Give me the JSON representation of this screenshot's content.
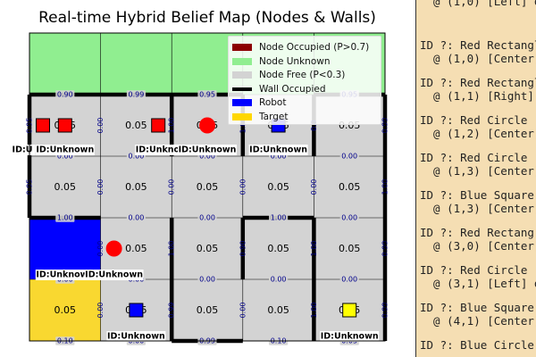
{
  "chart_data": {
    "type": "heatmap",
    "title": "Real-time Hybrid Belief Map (Nodes & Walls)",
    "grid": {
      "cols": 5,
      "rows": 5
    },
    "cells": [
      [
        {
          "state": "unknown"
        },
        {
          "state": "unknown"
        },
        {
          "state": "unknown"
        },
        {
          "state": "unknown"
        },
        {
          "state": "unknown"
        }
      ],
      [
        {
          "state": "free",
          "p": "0.05"
        },
        {
          "state": "free",
          "p": "0.05"
        },
        {
          "state": "free",
          "p": "0.05"
        },
        {
          "state": "free",
          "p": "0.05"
        },
        {
          "state": "free",
          "p": "0.05"
        }
      ],
      [
        {
          "state": "free",
          "p": "0.05"
        },
        {
          "state": "free",
          "p": "0.05"
        },
        {
          "state": "free",
          "p": "0.05"
        },
        {
          "state": "free",
          "p": "0.05"
        },
        {
          "state": "free",
          "p": "0.05"
        }
      ],
      [
        {
          "state": "robot",
          "p": ""
        },
        {
          "state": "free",
          "p": "0.05"
        },
        {
          "state": "free",
          "p": "0.05"
        },
        {
          "state": "free",
          "p": "0.05"
        },
        {
          "state": "free",
          "p": "0.05"
        }
      ],
      [
        {
          "state": "target",
          "p": "0.05"
        },
        {
          "state": "free",
          "p": "0.05"
        },
        {
          "state": "free",
          "p": "0.05"
        },
        {
          "state": "free",
          "p": "0.05"
        },
        {
          "state": "free",
          "p": "0.05"
        }
      ]
    ],
    "h_walls": [
      {
        "line": 1,
        "col": 0,
        "p": "0.90"
      },
      {
        "line": 1,
        "col": 1,
        "p": "0.99"
      },
      {
        "line": 1,
        "col": 2,
        "p": "0.95"
      },
      {
        "line": 1,
        "col": 4,
        "p": "0.95"
      },
      {
        "line": 2,
        "col": 0,
        "p": "0.00"
      },
      {
        "line": 2,
        "col": 1,
        "p": "0.00"
      },
      {
        "line": 2,
        "col": 2,
        "p": "0.00"
      },
      {
        "line": 2,
        "col": 3,
        "p": "0.00"
      },
      {
        "line": 2,
        "col": 4,
        "p": "0.00"
      },
      {
        "line": 3,
        "col": 0,
        "p": "1.00"
      },
      {
        "line": 3,
        "col": 1,
        "p": "0.00"
      },
      {
        "line": 3,
        "col": 2,
        "p": "0.00"
      },
      {
        "line": 3,
        "col": 3,
        "p": "1.00"
      },
      {
        "line": 3,
        "col": 4,
        "p": "0.00"
      },
      {
        "line": 4,
        "col": 0,
        "p": "0.00"
      },
      {
        "line": 4,
        "col": 1,
        "p": "0.00"
      },
      {
        "line": 4,
        "col": 2,
        "p": "0.00"
      },
      {
        "line": 4,
        "col": 3,
        "p": "0.00"
      },
      {
        "line": 4,
        "col": 4,
        "p": "0.00"
      },
      {
        "line": 5,
        "col": 0,
        "p": "0.10"
      },
      {
        "line": 5,
        "col": 1,
        "p": "0.00"
      },
      {
        "line": 5,
        "col": 2,
        "p": "0.99"
      },
      {
        "line": 5,
        "col": 3,
        "p": "0.10"
      },
      {
        "line": 5,
        "col": 4,
        "p": "0.05"
      }
    ],
    "v_walls": [
      {
        "row": 1,
        "line": 0,
        "p": "0.95"
      },
      {
        "row": 1,
        "line": 1,
        "p": "0.00"
      },
      {
        "row": 1,
        "line": 2,
        "p": "1.00"
      },
      {
        "row": 1,
        "line": 3,
        "p": "1.00"
      },
      {
        "row": 1,
        "line": 4,
        "p": "0.9"
      },
      {
        "row": 1,
        "line": 5,
        "p": "0.99"
      },
      {
        "row": 2,
        "line": 0,
        "p": "0.95"
      },
      {
        "row": 2,
        "line": 1,
        "p": "0.00"
      },
      {
        "row": 2,
        "line": 2,
        "p": "0.00"
      },
      {
        "row": 2,
        "line": 3,
        "p": "0.00"
      },
      {
        "row": 2,
        "line": 4,
        "p": "0.00"
      },
      {
        "row": 2,
        "line": 5,
        "p": "1.00"
      },
      {
        "row": 3,
        "line": 1,
        "p": "0.00"
      },
      {
        "row": 3,
        "line": 2,
        "p": "1.00"
      },
      {
        "row": 3,
        "line": 3,
        "p": "0.90"
      },
      {
        "row": 3,
        "line": 4,
        "p": "1.00"
      },
      {
        "row": 3,
        "line": 5,
        "p": "0.99"
      },
      {
        "row": 4,
        "line": 1,
        "p": "0.00"
      },
      {
        "row": 4,
        "line": 2,
        "p": "0.99"
      },
      {
        "row": 4,
        "line": 3,
        "p": "0.00"
      },
      {
        "row": 4,
        "line": 4,
        "p": "1.00"
      },
      {
        "row": 4,
        "line": 5,
        "p": "0.99"
      }
    ],
    "markers": [
      {
        "shape": "rect",
        "color": "#ff0000",
        "row": 1,
        "col": 0,
        "pos": "left"
      },
      {
        "shape": "rect",
        "color": "#ff0000",
        "row": 1,
        "col": 0,
        "pos": "center"
      },
      {
        "shape": "rect",
        "color": "#ff0000",
        "row": 1,
        "col": 1,
        "pos": "right"
      },
      {
        "shape": "circle",
        "color": "#ff0000",
        "row": 1,
        "col": 2,
        "pos": "center"
      },
      {
        "shape": "square",
        "color": "#0000ff",
        "row": 1,
        "col": 3,
        "pos": "center"
      },
      {
        "shape": "circle",
        "color": "#ff0000",
        "row": 3,
        "col": 1,
        "pos": "left"
      },
      {
        "shape": "square",
        "color": "#0000ff",
        "row": 4,
        "col": 1,
        "pos": "center"
      },
      {
        "shape": "rect",
        "color": "#ffff00",
        "row": 4,
        "col": 4,
        "pos": "center"
      }
    ],
    "id_labels": [
      {
        "text": "ID:U",
        "row": 1,
        "col": 0,
        "pos": "edge"
      },
      {
        "text": "ID:Unknown",
        "row": 1,
        "col": 0,
        "pos": "center"
      },
      {
        "text": "ID:Unknown",
        "row": 1,
        "col": 1,
        "pos": "right"
      },
      {
        "text": "ID:Unknown",
        "row": 1,
        "col": 2,
        "pos": "center"
      },
      {
        "text": "ID:Unknown",
        "row": 1,
        "col": 3,
        "pos": "center"
      },
      {
        "text": "ID:Unknown",
        "row": 3,
        "col": 0,
        "pos": "center"
      },
      {
        "text": "ID:Unknown",
        "row": 3,
        "col": 1,
        "pos": "left"
      },
      {
        "text": "ID:Unknown",
        "row": 4,
        "col": 1,
        "pos": "center"
      },
      {
        "text": "ID:Unknown",
        "row": 4,
        "col": 4,
        "pos": "center"
      }
    ],
    "legend": [
      {
        "label": "Node Occupied (P>0.7)",
        "color": "#8b0000",
        "kind": "patch"
      },
      {
        "label": "Node Unknown",
        "color": "#90ee90",
        "kind": "patch"
      },
      {
        "label": "Node Free (P<0.3)",
        "color": "#d3d3d3",
        "kind": "patch"
      },
      {
        "label": "Wall Occupied",
        "color": "#000000",
        "kind": "line"
      },
      {
        "label": "Robot",
        "color": "#0000ff",
        "kind": "patch"
      },
      {
        "label": "Target",
        "color": "#ffd700",
        "kind": "patch"
      }
    ],
    "legend_placement": "top-right",
    "colors": {
      "unknown": "#90ee90",
      "free": "#d3d3d3",
      "robot": "#0000ff",
      "target": "#f9d830",
      "wall_label": "#00008b",
      "wall": "#000000"
    }
  },
  "sidebar": {
    "lines": [
      "  @ (1,0) [Left] o",
      "",
      "ID ?: Red Rectangl",
      "  @ (1,0) [Center]",
      "ID ?: Red Rectangl",
      "  @ (1,1) [Right] ",
      "ID ?: Red Circle  ",
      "  @ (1,2) [Center]",
      "ID ?: Red Circle  ",
      "  @ (1,3) [Center]",
      "ID ?: Blue Square ",
      "  @ (1,3) [Center]",
      "ID ?: Red Rectang",
      "  @ (3,0) [Center]",
      "ID ?: Red Circle  ",
      "  @ (3,1) [Left] o",
      "ID ?: Blue Square ",
      "  @ (4,1) [Center]",
      "ID ?: Blue Circle "
    ]
  }
}
